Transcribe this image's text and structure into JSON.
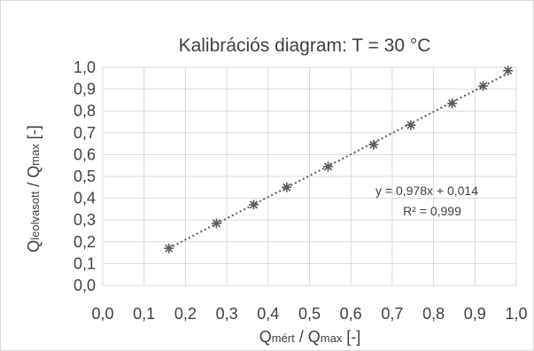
{
  "chart_data": {
    "type": "scatter",
    "title": "Kalibrációs diagram: T = 30 °C",
    "xlabel": {
      "main": "Q",
      "sub": "mért",
      "rest": " / Q",
      "sub2": "max",
      "tail": " [-]"
    },
    "ylabel": {
      "main": "Q",
      "sub": "leolvasott",
      "rest": " / Q",
      "sub2": "max",
      "tail": " [-]"
    },
    "xlim": [
      0,
      1
    ],
    "ylim": [
      0,
      1
    ],
    "xticks": [
      "0,0",
      "0,1",
      "0,2",
      "0,3",
      "0,4",
      "0,5",
      "0,6",
      "0,7",
      "0,8",
      "0,9",
      "1,0"
    ],
    "yticks": [
      "0,0",
      "0,1",
      "0,2",
      "0,3",
      "0,4",
      "0,5",
      "0,6",
      "0,7",
      "0,8",
      "0,9",
      "1,0"
    ],
    "grid": true,
    "marker": "asterisk",
    "marker_color": "#595959",
    "trendline_color": "#595959",
    "x": [
      0.16,
      0.275,
      0.365,
      0.445,
      0.545,
      0.655,
      0.745,
      0.845,
      0.92,
      0.98
    ],
    "y": [
      0.17,
      0.285,
      0.37,
      0.45,
      0.545,
      0.645,
      0.735,
      0.835,
      0.915,
      0.985
    ],
    "trendline": {
      "slope": 0.978,
      "intercept": 0.014,
      "x_range": [
        0.16,
        0.98
      ]
    },
    "annotations": [
      "y = 0,978x + 0,014",
      "R² = 0,999"
    ]
  }
}
